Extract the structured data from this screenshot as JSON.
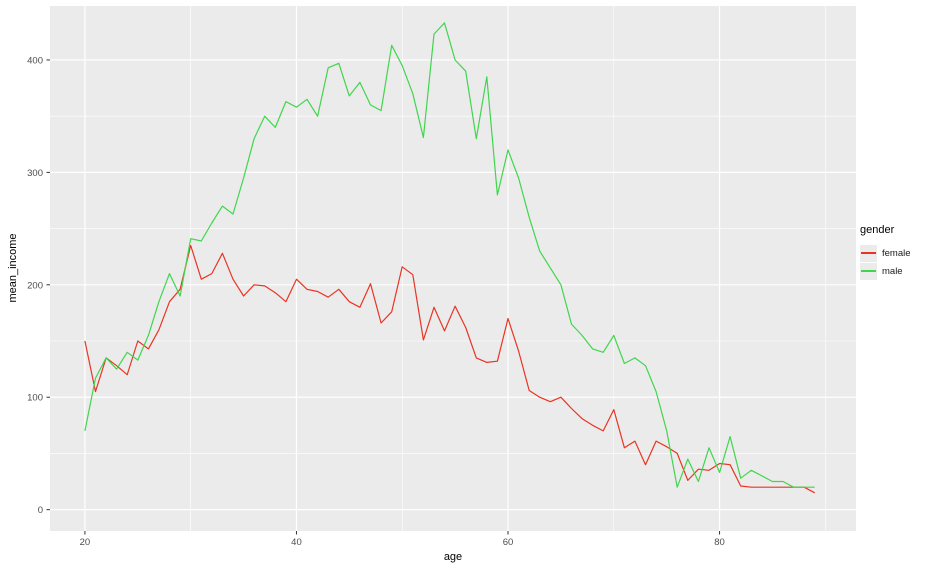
{
  "figure": {
    "xlabel": "age",
    "ylabel": "mean_income"
  },
  "legend": {
    "title": "gender",
    "items": [
      {
        "label": "female",
        "color": "#ea3423"
      },
      {
        "label": "male",
        "color": "#3fd64c"
      }
    ]
  },
  "chart_data": {
    "type": "line",
    "title": "",
    "xlabel": "age",
    "ylabel": "mean_income",
    "legend_title": "gender",
    "legend_position": "right",
    "panel_bg": "#ebebeb",
    "grid_color": "#ffffff",
    "tick_color": "#333333",
    "xlim": [
      16.7,
      92.9
    ],
    "ylim": [
      -19,
      448
    ],
    "x_ticks": [
      20,
      40,
      60,
      80
    ],
    "y_ticks": [
      0,
      100,
      200,
      300,
      400
    ],
    "x_minor": [
      30,
      50,
      70,
      90
    ],
    "y_minor": [
      50,
      150,
      250,
      350
    ],
    "x": [
      20,
      21,
      22,
      23,
      24,
      25,
      26,
      27,
      28,
      29,
      30,
      31,
      32,
      33,
      34,
      35,
      36,
      37,
      38,
      39,
      40,
      41,
      42,
      43,
      44,
      45,
      46,
      47,
      48,
      49,
      50,
      51,
      52,
      53,
      54,
      55,
      56,
      57,
      58,
      59,
      60,
      61,
      62,
      63,
      64,
      65,
      66,
      67,
      68,
      69,
      70,
      71,
      72,
      73,
      74,
      75,
      76,
      77,
      78,
      79,
      80,
      81,
      82,
      83,
      84,
      85,
      86,
      87,
      88,
      89
    ],
    "series": [
      {
        "name": "female",
        "color": "#ea3423",
        "values": [
          150,
          105,
          135,
          128,
          120,
          150,
          143,
          160,
          185,
          196,
          235,
          205,
          210,
          228,
          205,
          190,
          200,
          199,
          193,
          185,
          205,
          196,
          194,
          189,
          196,
          185,
          180,
          201,
          166,
          176,
          216,
          209,
          151,
          180,
          159,
          181,
          162,
          135,
          131,
          132,
          170,
          141,
          106,
          100,
          96,
          100,
          90,
          81,
          75,
          70,
          89,
          55,
          61,
          40,
          61,
          56,
          50,
          26,
          36,
          35,
          41,
          40,
          21,
          20,
          20,
          20,
          20,
          20,
          20,
          15
        ]
      },
      {
        "name": "male",
        "color": "#3fd64c",
        "values": [
          70,
          117,
          135,
          125,
          140,
          133,
          155,
          185,
          210,
          190,
          241,
          239,
          255,
          270,
          263,
          295,
          330,
          350,
          340,
          363,
          358,
          365,
          350,
          393,
          397,
          368,
          380,
          360,
          355,
          413,
          395,
          370,
          331,
          423,
          433,
          400,
          390,
          330,
          385,
          280,
          320,
          295,
          260,
          230,
          215,
          200,
          165,
          155,
          143,
          140,
          155,
          130,
          135,
          128,
          105,
          70,
          20,
          45,
          25,
          55,
          33,
          65,
          28,
          35,
          30,
          25,
          25,
          20,
          20,
          20
        ]
      }
    ]
  }
}
